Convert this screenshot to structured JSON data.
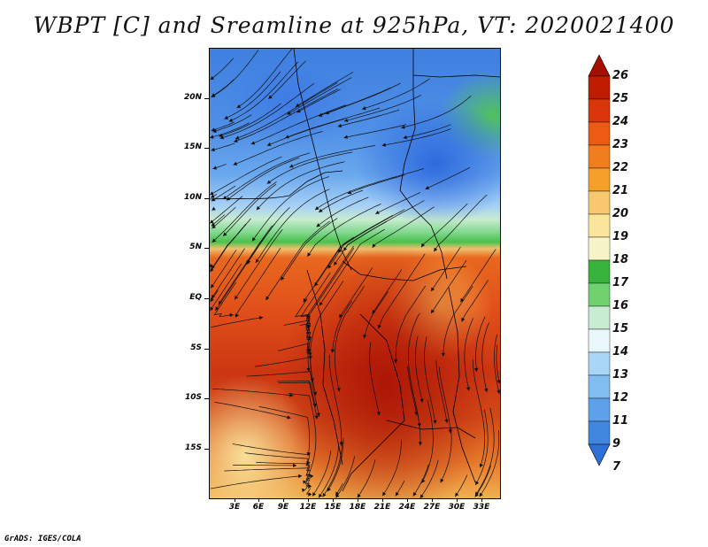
{
  "title": "WBPT [C] and Sreamline at 925hPa, VT: 2020021400",
  "lat_labels": [
    "20N",
    "15N",
    "10N",
    "5N",
    "EQ",
    "5S",
    "10S",
    "15S"
  ],
  "lon_labels": [
    "3E",
    "6E",
    "9E",
    "12E",
    "15E",
    "18E",
    "21E",
    "24E",
    "27E",
    "30E",
    "33E"
  ],
  "colorbar": {
    "labels": [
      "26",
      "25",
      "24",
      "23",
      "22",
      "21",
      "20",
      "19",
      "18",
      "17",
      "16",
      "15",
      "14",
      "13",
      "12",
      "11",
      "9",
      "7"
    ],
    "colors": [
      "#a50f00",
      "#c01c00",
      "#d9360a",
      "#ec5a14",
      "#f07d1e",
      "#f5a028",
      "#f8c870",
      "#fbe59b",
      "#f7f5c8",
      "#38b43c",
      "#6fd26e",
      "#c8ecd2",
      "#e8f7fb",
      "#a9d6f6",
      "#82bdf2",
      "#5ea0ea",
      "#4187e0",
      "#2f6fd8"
    ]
  },
  "credit": "GrADS: IGES/COLA"
}
